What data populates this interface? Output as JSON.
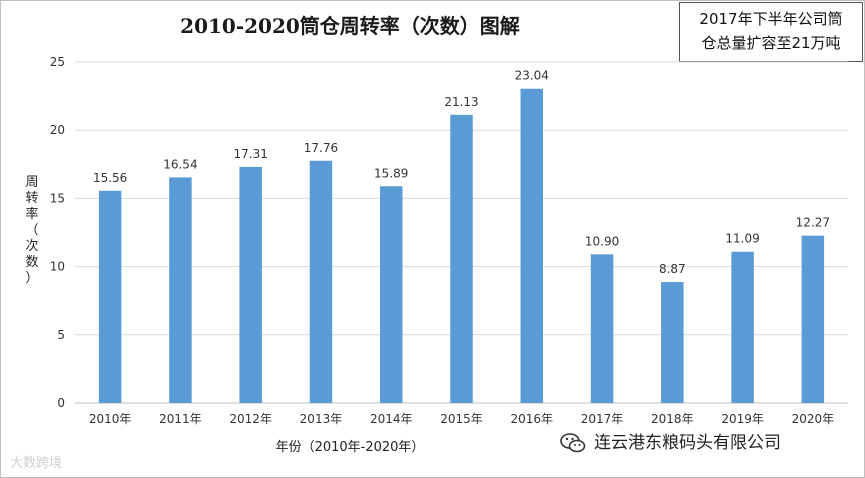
{
  "chart_data": {
    "type": "bar",
    "title": "2010-2020筒仓周转率（次数）图解",
    "note_lines": [
      "2017年下半年公司筒",
      "仓总量扩容至21万吨"
    ],
    "ylabel_chars": [
      "周",
      "转",
      "率",
      "（",
      "次",
      "数",
      "）"
    ],
    "xlabel": "年份（2010年-2020年）",
    "categories": [
      "2010年",
      "2011年",
      "2012年",
      "2013年",
      "2014年",
      "2015年",
      "2016年",
      "2017年",
      "2018年",
      "2019年",
      "2020年"
    ],
    "values": [
      15.56,
      16.54,
      17.31,
      17.76,
      15.89,
      21.13,
      23.04,
      10.9,
      8.87,
      11.09,
      12.27
    ],
    "value_labels": [
      "15.56",
      "16.54",
      "17.31",
      "17.76",
      "15.89",
      "21.13",
      "23.04",
      "10.90",
      "8.87",
      "11.09",
      "12.27"
    ],
    "ylim": [
      0,
      25
    ],
    "yticks": [
      "0",
      "5",
      "10",
      "15",
      "20",
      "25"
    ],
    "grid": true,
    "bar_color": "#5b9bd5"
  },
  "watermarks": {
    "left": "大数跨境",
    "right": "连云港东粮码头有限公司"
  }
}
